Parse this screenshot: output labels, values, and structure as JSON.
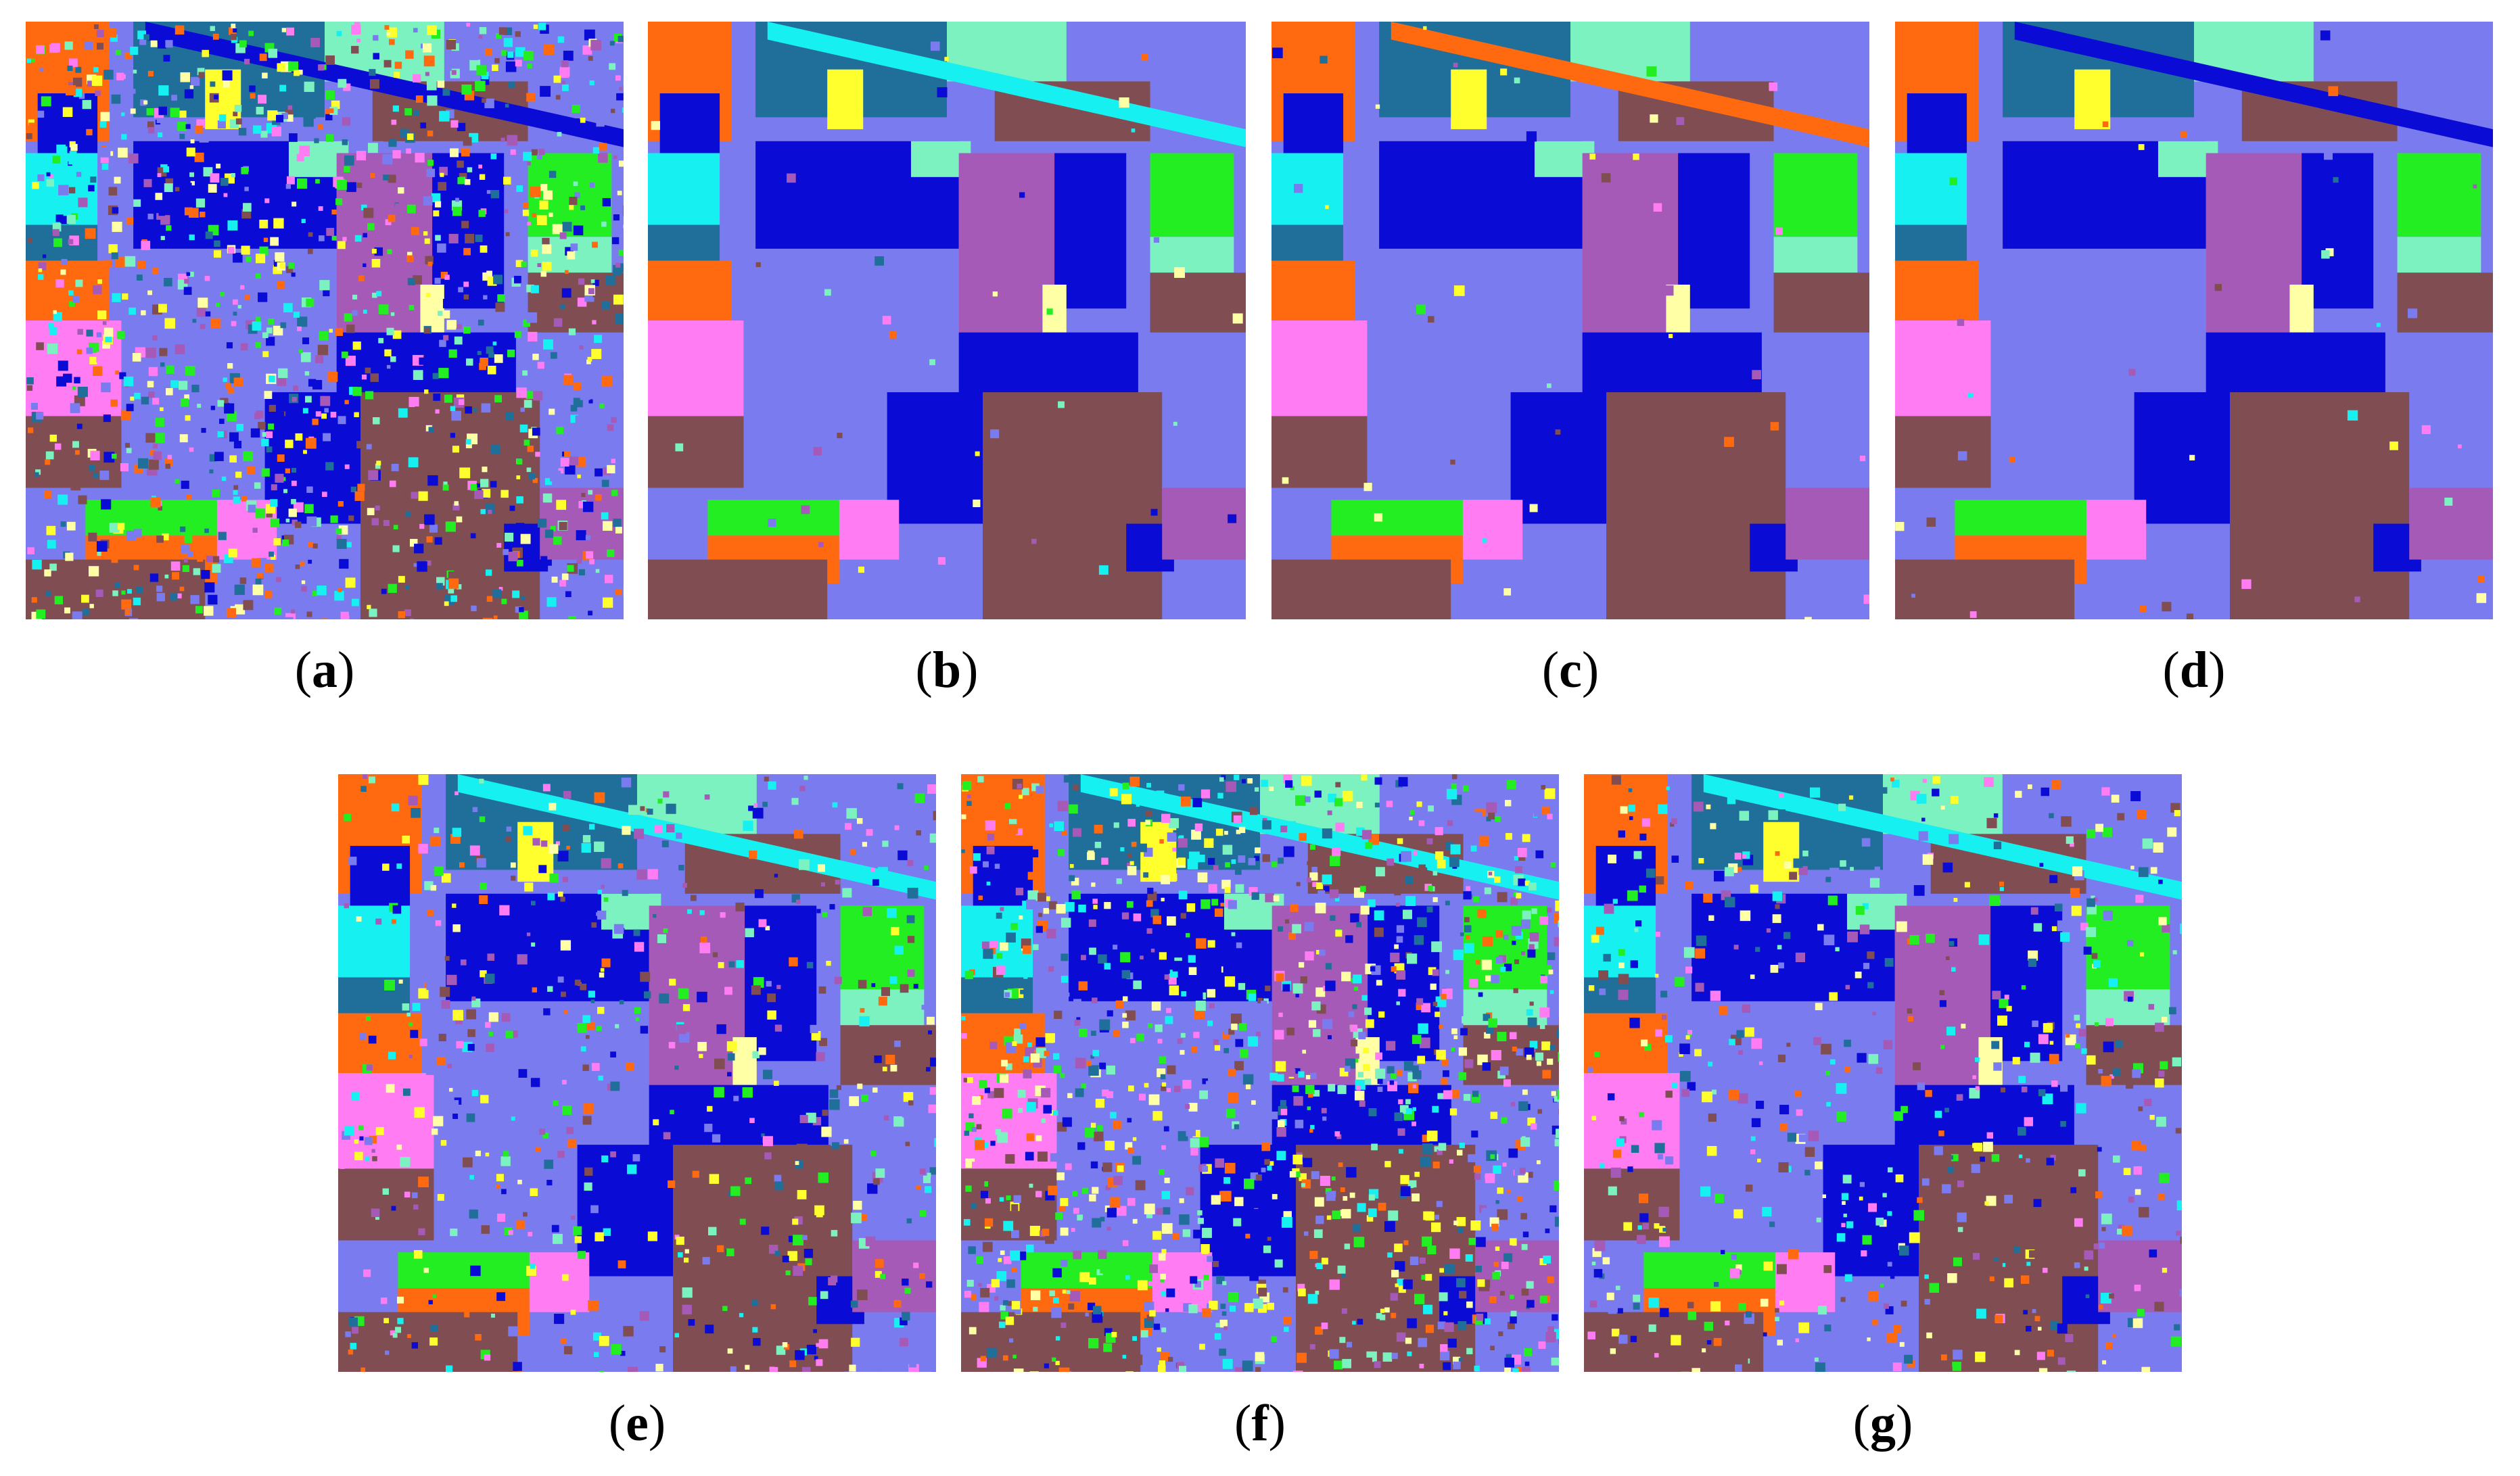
{
  "figure": {
    "panels": [
      {
        "label_open": "(",
        "letter": "a",
        "label_close": ")",
        "variant": "noisy"
      },
      {
        "label_open": "(",
        "letter": "b",
        "label_close": ")",
        "variant": "smooth"
      },
      {
        "label_open": "(",
        "letter": "c",
        "label_close": ")",
        "variant": "smooth"
      },
      {
        "label_open": "(",
        "letter": "d",
        "label_close": ")",
        "variant": "smooth"
      },
      {
        "label_open": "(",
        "letter": "e",
        "label_close": ")",
        "variant": "mixed"
      },
      {
        "label_open": "(",
        "letter": "f",
        "label_close": ")",
        "variant": "noisy"
      },
      {
        "label_open": "(",
        "letter": "g",
        "label_close": ")",
        "variant": "mixed"
      }
    ],
    "palette": {
      "orange": "#ff6a10",
      "teal": "#1f6f9a",
      "aqua": "#7cf2c0",
      "yellow": "#ffff2e",
      "periwinkle": "#7b7bf0",
      "blue": "#0b0bd6",
      "purple": "#a65ab8",
      "brown": "#7f4d52",
      "green": "#22ee22",
      "pink": "#ff7cf2",
      "cyan": "#16f0f0",
      "cream": "#ffffa6"
    }
  }
}
